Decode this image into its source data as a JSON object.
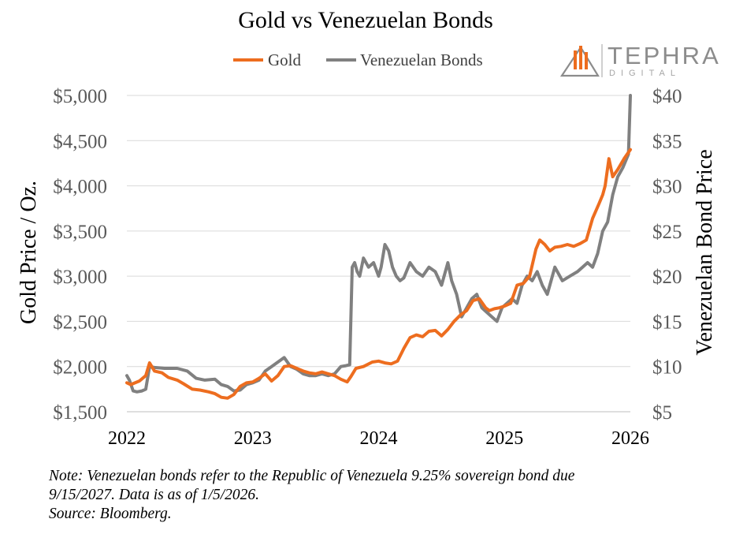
{
  "chart_data": {
    "type": "line",
    "title": "Gold vs Venezuelan Bonds",
    "legend": [
      "Gold",
      "Venezuelan Bonds"
    ],
    "legend_position": "top-center",
    "grid": "horizontal",
    "x_ticks": [
      "2022",
      "2023",
      "2024",
      "2025",
      "2026"
    ],
    "xlim": [
      2022,
      2026
    ],
    "y_left": {
      "label": "Gold Price / Oz.",
      "lim": [
        1500,
        5000
      ],
      "ticks": [
        1500,
        2000,
        2500,
        3000,
        3500,
        4000,
        4500,
        5000
      ],
      "tick_labels": [
        "$1,500",
        "$2,000",
        "$2,500",
        "$3,000",
        "$3,500",
        "$4,000",
        "$4,500",
        "$5,000"
      ]
    },
    "y_right": {
      "label": "Venezuelan Bond Price",
      "lim": [
        5,
        40
      ],
      "ticks": [
        5,
        10,
        15,
        20,
        25,
        30,
        35,
        40
      ],
      "tick_labels": [
        "$5",
        "$10",
        "$15",
        "$20",
        "$25",
        "$30",
        "$35",
        "$40"
      ]
    },
    "series": [
      {
        "name": "Gold",
        "axis": "left",
        "color": "#ed6d1f",
        "x": [
          2022.0,
          2022.03,
          2022.1,
          2022.15,
          2022.18,
          2022.22,
          2022.28,
          2022.33,
          2022.4,
          2022.45,
          2022.52,
          2022.58,
          2022.65,
          2022.7,
          2022.75,
          2022.8,
          2022.85,
          2022.9,
          2022.95,
          2023.0,
          2023.05,
          2023.1,
          2023.15,
          2023.2,
          2023.25,
          2023.3,
          2023.35,
          2023.4,
          2023.45,
          2023.5,
          2023.55,
          2023.6,
          2023.65,
          2023.7,
          2023.75,
          2023.78,
          2023.82,
          2023.88,
          2023.95,
          2024.0,
          2024.05,
          2024.1,
          2024.15,
          2024.2,
          2024.25,
          2024.3,
          2024.35,
          2024.4,
          2024.45,
          2024.5,
          2024.55,
          2024.6,
          2024.65,
          2024.7,
          2024.75,
          2024.8,
          2024.85,
          2024.88,
          2024.92,
          2024.96,
          2025.0,
          2025.05,
          2025.1,
          2025.15,
          2025.2,
          2025.25,
          2025.28,
          2025.32,
          2025.36,
          2025.4,
          2025.45,
          2025.5,
          2025.55,
          2025.6,
          2025.65,
          2025.7,
          2025.75,
          2025.78,
          2025.8,
          2025.83,
          2025.86,
          2025.9,
          2025.95,
          2026.0
        ],
        "values": [
          1820,
          1800,
          1840,
          1900,
          2040,
          1950,
          1930,
          1880,
          1850,
          1810,
          1750,
          1740,
          1720,
          1700,
          1660,
          1650,
          1690,
          1780,
          1820,
          1830,
          1870,
          1920,
          1840,
          1900,
          2000,
          2010,
          1980,
          1950,
          1930,
          1920,
          1940,
          1920,
          1900,
          1860,
          1830,
          1890,
          1980,
          2000,
          2050,
          2060,
          2040,
          2030,
          2060,
          2200,
          2320,
          2350,
          2330,
          2390,
          2400,
          2340,
          2410,
          2500,
          2570,
          2620,
          2730,
          2750,
          2650,
          2620,
          2640,
          2650,
          2670,
          2700,
          2900,
          2920,
          3000,
          3300,
          3400,
          3350,
          3280,
          3320,
          3330,
          3350,
          3330,
          3360,
          3400,
          3640,
          3800,
          3900,
          4000,
          4300,
          4100,
          4180,
          4300,
          4400
        ]
      },
      {
        "name": "Venezuelan Bonds",
        "axis": "right",
        "color": "#808080",
        "x": [
          2022.0,
          2022.02,
          2022.05,
          2022.08,
          2022.12,
          2022.15,
          2022.18,
          2022.22,
          2022.3,
          2022.4,
          2022.48,
          2022.55,
          2022.62,
          2022.7,
          2022.75,
          2022.8,
          2022.85,
          2022.9,
          2022.95,
          2023.0,
          2023.05,
          2023.1,
          2023.15,
          2023.2,
          2023.25,
          2023.3,
          2023.35,
          2023.4,
          2023.45,
          2023.5,
          2023.55,
          2023.6,
          2023.65,
          2023.7,
          2023.74,
          2023.77,
          2023.79,
          2023.81,
          2023.83,
          2023.85,
          2023.88,
          2023.92,
          2023.96,
          2024.0,
          2024.02,
          2024.05,
          2024.08,
          2024.11,
          2024.14,
          2024.17,
          2024.2,
          2024.25,
          2024.3,
          2024.35,
          2024.4,
          2024.45,
          2024.5,
          2024.55,
          2024.58,
          2024.62,
          2024.66,
          2024.7,
          2024.74,
          2024.78,
          2024.82,
          2024.86,
          2024.9,
          2024.94,
          2024.98,
          2025.02,
          2025.06,
          2025.1,
          2025.14,
          2025.18,
          2025.22,
          2025.26,
          2025.3,
          2025.34,
          2025.4,
          2025.46,
          2025.52,
          2025.58,
          2025.62,
          2025.66,
          2025.7,
          2025.74,
          2025.78,
          2025.82,
          2025.86,
          2025.9,
          2025.94,
          2025.97,
          2025.985,
          2026.0
        ],
        "values": [
          9,
          8.5,
          7.3,
          7.2,
          7.3,
          7.5,
          10,
          9.9,
          9.8,
          9.8,
          9.5,
          8.7,
          8.5,
          8.6,
          8.0,
          7.8,
          7.3,
          7.4,
          8.0,
          8.2,
          8.5,
          9.5,
          10.0,
          10.5,
          11.0,
          10.0,
          9.7,
          9.2,
          9.0,
          9.0,
          9.2,
          9.0,
          9.2,
          10.0,
          10.1,
          10.2,
          21.0,
          21.5,
          20.5,
          20.0,
          22.0,
          21.0,
          21.5,
          20.0,
          21.0,
          23.5,
          22.8,
          21.0,
          20.0,
          19.5,
          19.8,
          21.5,
          20.5,
          20.0,
          21.0,
          20.5,
          19.0,
          21.5,
          19.5,
          18.0,
          15.5,
          16.5,
          17.5,
          18.0,
          16.5,
          16.0,
          15.5,
          15.0,
          16.5,
          17.0,
          17.5,
          17.0,
          19.0,
          20.0,
          19.5,
          20.5,
          19.0,
          18.0,
          21.0,
          19.5,
          20.0,
          20.5,
          21.0,
          21.5,
          21.0,
          22.5,
          25.0,
          26.0,
          29.0,
          31.0,
          32.0,
          33.0,
          33.5,
          40.0
        ]
      }
    ],
    "annotations": [
      "Note: Venezuelan bonds refer to the Republic of Venezuela 9.25% sovereign bond due",
      "9/15/2027. Data is as of 1/5/2026.",
      "Source: Bloomberg."
    ]
  },
  "logo": {
    "name": "TEPHRA",
    "sub": "DIGITAL",
    "icon": "tephra-mountain-icon",
    "color": "#8c8c8c",
    "accent": "#ed6d1f"
  }
}
